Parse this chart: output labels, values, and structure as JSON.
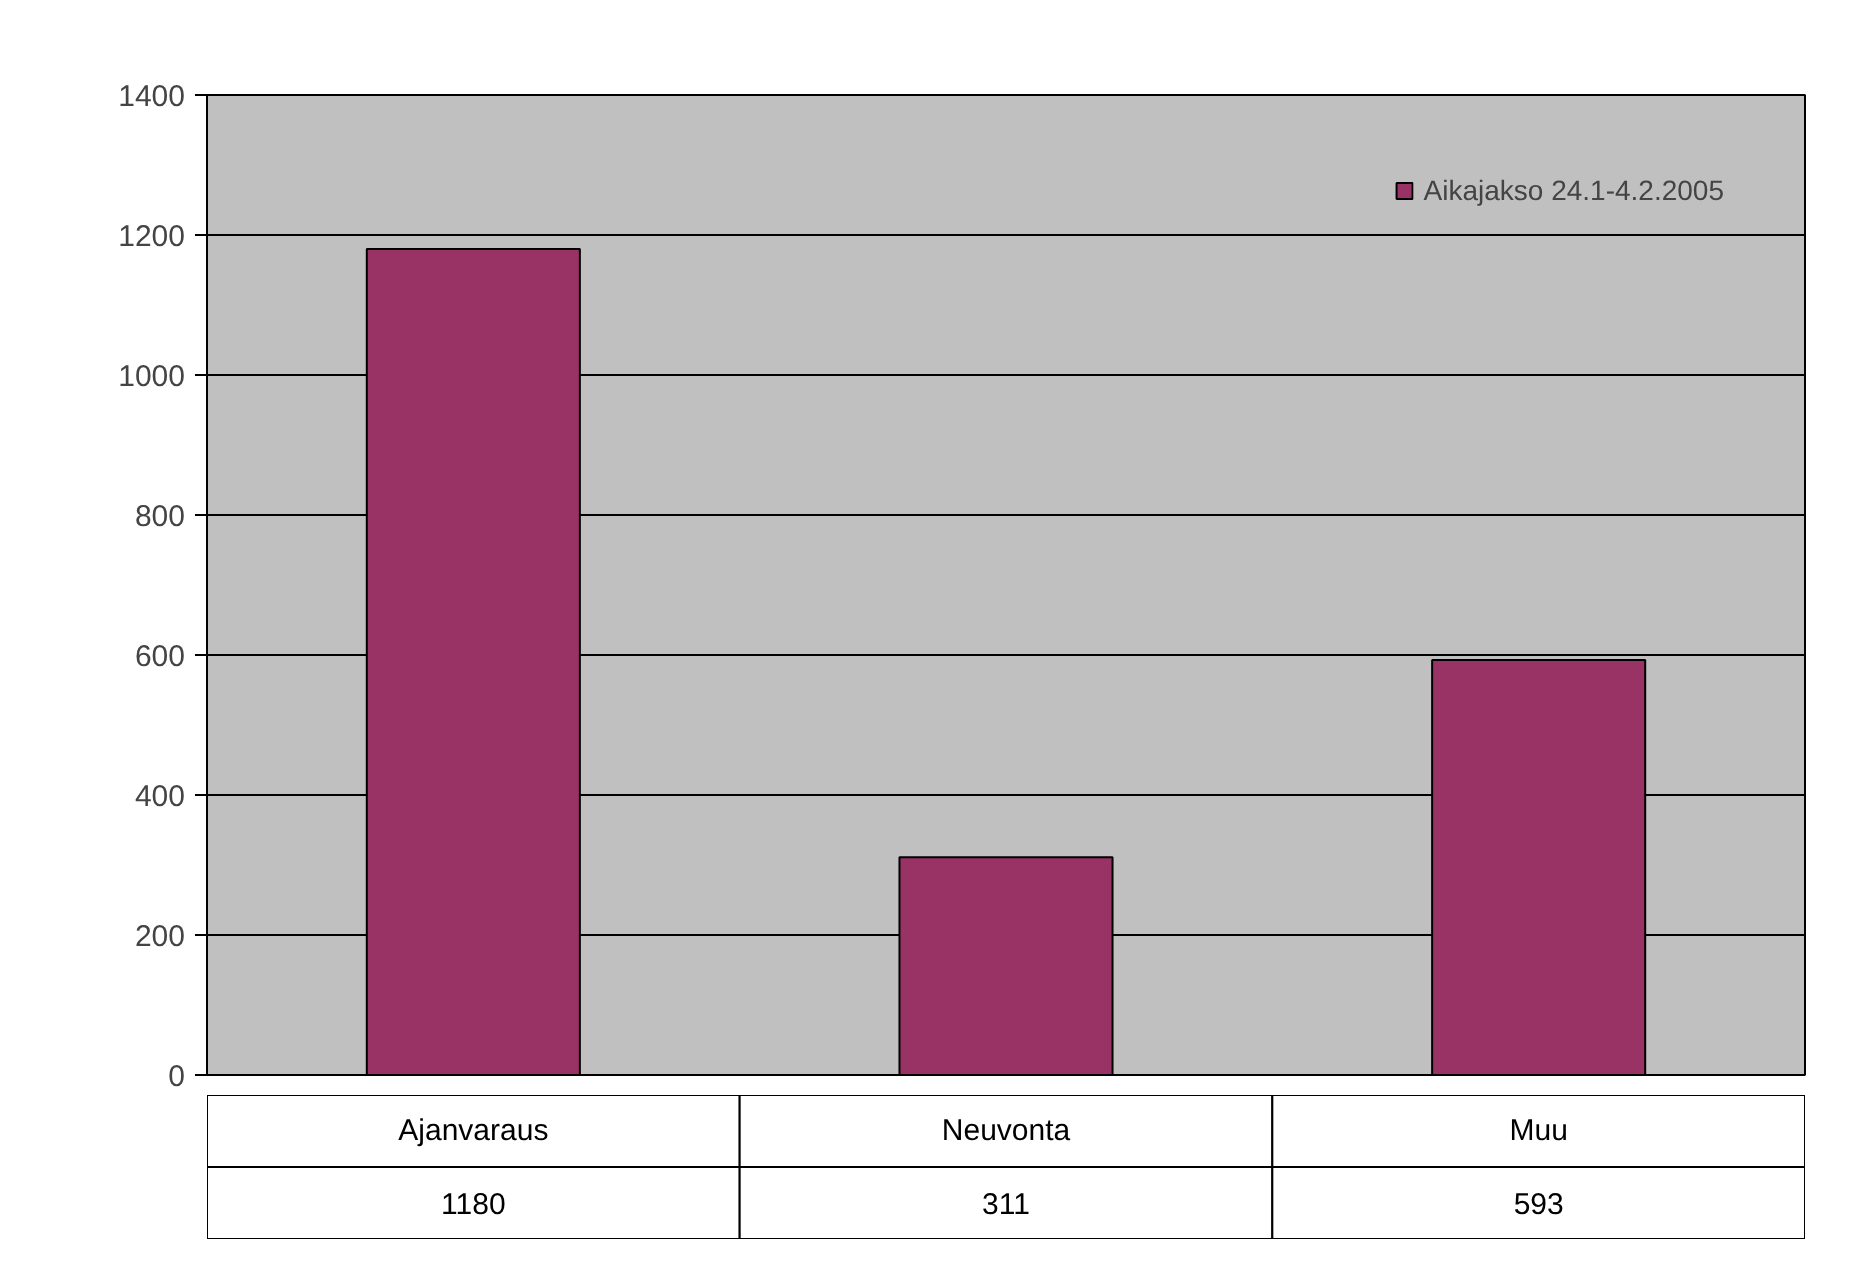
{
  "chart_data": {
    "type": "bar",
    "categories": [
      "Ajanvaraus",
      "Neuvonta",
      "Muu"
    ],
    "series": [
      {
        "name": "Aikajakso 24.1-4.2.2005",
        "color": "#993366",
        "values": [
          1180,
          311,
          593
        ]
      }
    ],
    "ylim": [
      0,
      1400
    ],
    "yticks": [
      0,
      200,
      400,
      600,
      800,
      1000,
      1200,
      1400
    ],
    "grid": "y",
    "legend": "top right",
    "data_labels": true
  }
}
